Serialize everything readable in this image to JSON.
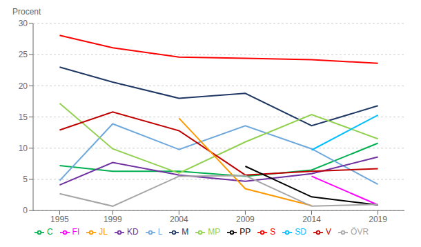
{
  "chart_data": {
    "type": "line",
    "y_label": "Procent",
    "x": [
      1995,
      1999,
      2004,
      2009,
      2014,
      2019
    ],
    "xlim": [
      1993,
      2021
    ],
    "xticks": [
      1995,
      1999,
      2004,
      2009,
      2014,
      2019
    ],
    "ylim": [
      0,
      30
    ],
    "yticks": [
      0,
      5,
      10,
      15,
      20,
      25,
      30
    ],
    "grid": "y",
    "legend": "bottom",
    "series": [
      {
        "name": "M",
        "color": "#1F3864",
        "values": [
          23.0,
          20.6,
          18.0,
          18.8,
          13.6,
          16.8
        ]
      },
      {
        "name": "C",
        "color": "#00b050",
        "values": [
          7.2,
          6.3,
          6.3,
          5.5,
          6.5,
          10.8
        ]
      },
      {
        "name": "L",
        "color": "#6fa8dc",
        "values": [
          4.8,
          13.9,
          9.8,
          13.6,
          9.9,
          4.2
        ]
      },
      {
        "name": "KD",
        "color": "#7030a0",
        "values": [
          4.1,
          7.7,
          5.7,
          4.7,
          5.9,
          8.6
        ]
      },
      {
        "name": "MP",
        "color": "#92d050",
        "values": [
          17.2,
          9.9,
          6.0,
          11.0,
          15.4,
          11.5
        ]
      },
      {
        "name": "S",
        "color": "#ff0000",
        "values": [
          28.1,
          26.1,
          24.6,
          24.4,
          24.2,
          23.6
        ]
      },
      {
        "name": "V",
        "color": "#c00000",
        "values": [
          12.9,
          15.8,
          12.8,
          5.7,
          6.3,
          6.7
        ]
      },
      {
        "name": "JL",
        "color": "#ff9900",
        "values": [
          null,
          null,
          14.8,
          3.5,
          0.8,
          null
        ]
      },
      {
        "name": "PP",
        "color": "#000000",
        "values": [
          null,
          null,
          null,
          7.1,
          2.2,
          0.9
        ]
      },
      {
        "name": "FI",
        "color": "#ff00ff",
        "values": [
          null,
          null,
          null,
          null,
          5.5,
          0.9
        ]
      },
      {
        "name": "SD",
        "color": "#00bfff",
        "values": [
          null,
          null,
          null,
          null,
          9.7,
          15.3
        ]
      },
      {
        "name": "ÖVR",
        "color": "#a6a6a6",
        "values": [
          2.7,
          0.7,
          5.5,
          5.6,
          0.7,
          1.0
        ]
      }
    ]
  }
}
